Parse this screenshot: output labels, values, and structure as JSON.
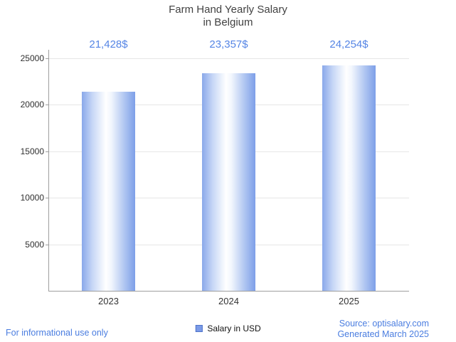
{
  "title": {
    "line1": "Farm Hand Yearly Salary",
    "line2": "in Belgium"
  },
  "chart_data": {
    "type": "bar",
    "title": "Farm Hand Yearly Salary in Belgium",
    "categories": [
      "2023",
      "2024",
      "2025"
    ],
    "values": [
      21428,
      23357,
      24254
    ],
    "value_labels": [
      "21,428$",
      "23,357$",
      "24,254$"
    ],
    "xlabel": "",
    "ylabel": "",
    "ylim": [
      0,
      25000
    ],
    "yticks": [
      5000,
      10000,
      15000,
      20000,
      25000
    ],
    "grid": true,
    "legend_position": "bottom",
    "series_name": "Salary in USD",
    "bar_gradient": [
      "#8aa8ea",
      "#ffffff",
      "#7d9fe8"
    ]
  },
  "legend": {
    "label": "Salary in USD"
  },
  "footer": {
    "left": "For informational use only",
    "source": "Source: optisalary.com",
    "generated": "Generated March 2025"
  },
  "colors": {
    "value_label_blue": "#5585e5",
    "footer_blue": "#4a7de0",
    "axis_gray": "#9e9e9e",
    "grid_gray": "#e6e6e6",
    "title_gray": "#424242"
  }
}
